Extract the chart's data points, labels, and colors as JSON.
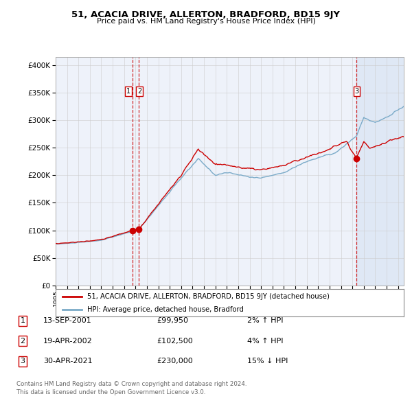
{
  "title": "51, ACACIA DRIVE, ALLERTON, BRADFORD, BD15 9JY",
  "subtitle": "Price paid vs. HM Land Registry's House Price Index (HPI)",
  "ytick_vals": [
    0,
    50000,
    100000,
    150000,
    200000,
    250000,
    300000,
    350000,
    400000
  ],
  "ylim": [
    0,
    415000
  ],
  "xlim_start": 1995.0,
  "xlim_end": 2025.5,
  "line1_color": "#cc0000",
  "line2_color": "#7aaac8",
  "vline_color": "#cc0000",
  "sale_marker_color": "#cc0000",
  "transactions": [
    {
      "id": 1,
      "date_label": "13-SEP-2001",
      "x": 2001.71,
      "price": 99950,
      "pct": "2%",
      "direction": "↑"
    },
    {
      "id": 2,
      "date_label": "19-APR-2002",
      "x": 2002.3,
      "price": 102500,
      "pct": "4%",
      "direction": "↑"
    },
    {
      "id": 3,
      "date_label": "30-APR-2021",
      "x": 2021.33,
      "price": 230000,
      "pct": "15%",
      "direction": "↓"
    }
  ],
  "legend_line1": "51, ACACIA DRIVE, ALLERTON, BRADFORD, BD15 9JY (detached house)",
  "legend_line2": "HPI: Average price, detached house, Bradford",
  "footnote": "Contains HM Land Registry data © Crown copyright and database right 2024.\nThis data is licensed under the Open Government Licence v3.0.",
  "table_rows": [
    {
      "id": 1,
      "date": "13-SEP-2001",
      "price": "£99,950",
      "pct": "2% ↑ HPI"
    },
    {
      "id": 2,
      "date": "19-APR-2002",
      "price": "£102,500",
      "pct": "4% ↑ HPI"
    },
    {
      "id": 3,
      "date": "30-APR-2021",
      "price": "£230,000",
      "pct": "15% ↓ HPI"
    }
  ],
  "background_color": "#ffffff",
  "plot_bg_color": "#eef2fa",
  "grid_color": "#cccccc",
  "shade_color": "#c5d8ec"
}
